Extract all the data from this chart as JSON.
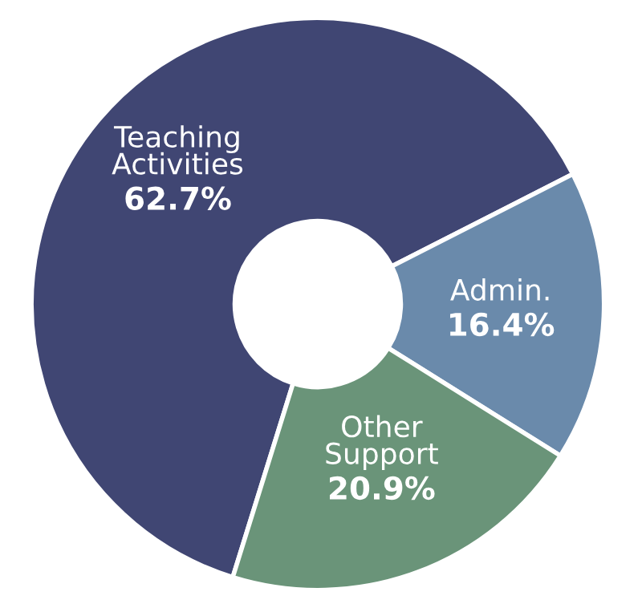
{
  "chart_data": {
    "type": "donut",
    "categories": [
      "Teaching Activities",
      "Admin.",
      "Other Support"
    ],
    "values": [
      62.7,
      16.4,
      20.9
    ],
    "colors": [
      "#404673",
      "#6a8aab",
      "#6a9479"
    ],
    "value_labels": [
      "62.7%",
      "16.4%",
      "20.9%"
    ]
  }
}
